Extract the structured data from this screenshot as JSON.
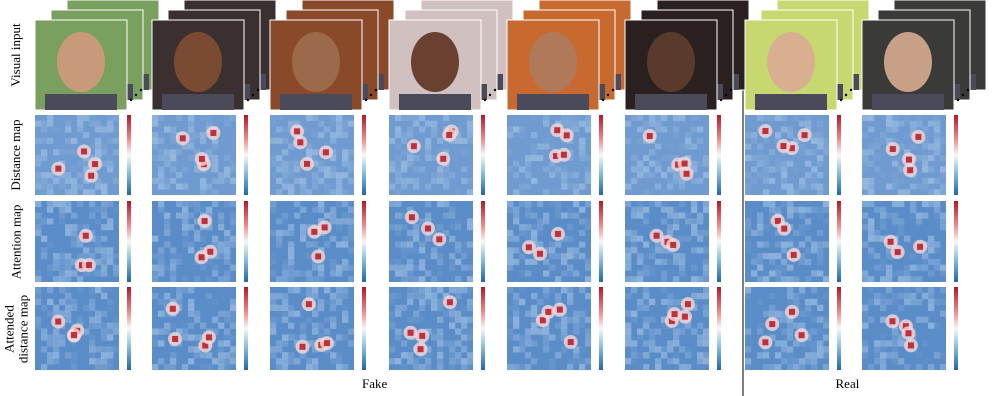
{
  "row_labels": [
    "Visual input",
    "Distance map",
    "Attention map",
    "Attended distance map"
  ],
  "column_groups": [
    {
      "label": "Fake",
      "columns": 6
    },
    {
      "label": "Real",
      "columns": 2
    }
  ]
}
